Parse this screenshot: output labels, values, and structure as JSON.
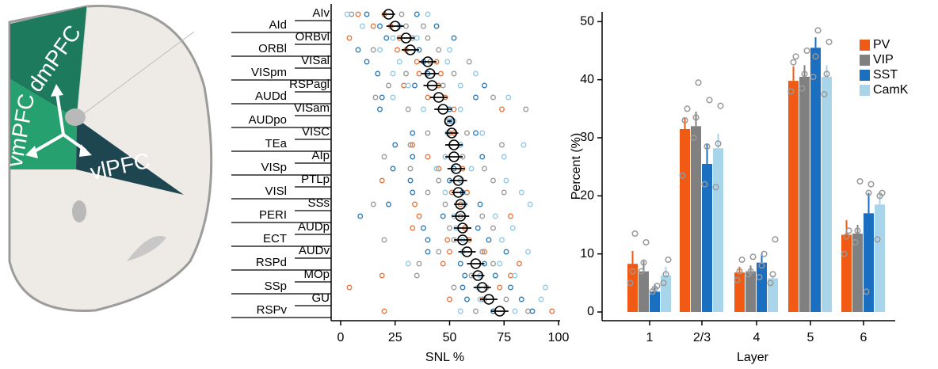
{
  "diagram": {
    "labels": [
      "dmPFC",
      "vmPFC",
      "vlPFC"
    ]
  },
  "chart_data": [
    {
      "type": "dot",
      "categories": [
        "AIv",
        "AId",
        "ORBvl",
        "ORBl",
        "VISal",
        "VISpm",
        "RSPagl",
        "AUDd",
        "VISam",
        "AUDpo",
        "VISC",
        "TEa",
        "AIp",
        "VISp",
        "PTLp",
        "VISl",
        "SSs",
        "PERI",
        "AUDp",
        "ECT",
        "AUDv",
        "RSPd",
        "MOp",
        "SSp",
        "GU",
        "RSPv"
      ],
      "category_colors": [
        "#c8323c",
        "#c8323c",
        "#c8323c",
        "#c8323c",
        "#3c3ca0",
        "#3c3ca0",
        "#3c3ca0",
        "#3c3ca0",
        "#3c3ca0",
        "#3c3ca0",
        "#3c3ca0",
        "#3c3ca0",
        "#3c3ca0",
        "#3c3ca0",
        "#3c3ca0",
        "#3c3ca0",
        "#3c3ca0",
        "#3c3ca0",
        "#3c3ca0",
        "#3c3ca0",
        "#3c3ca0",
        "#3c3ca0",
        "#3c3ca0",
        "#3c3ca0",
        "#3c3ca0",
        "#3c3ca0"
      ],
      "values": [
        22,
        25,
        30,
        32,
        40,
        41,
        42,
        45,
        47,
        50,
        51,
        52,
        52,
        53,
        54,
        54,
        55,
        55,
        56,
        56,
        58,
        62,
        63,
        65,
        68,
        73
      ],
      "errors": [
        3,
        4,
        4,
        4,
        4,
        4,
        4,
        4,
        4,
        1,
        3,
        4,
        4,
        4,
        4,
        3,
        3,
        4,
        4,
        4,
        4,
        4,
        3,
        4,
        4,
        4
      ],
      "series": [
        {
          "color": "#e8743b",
          "values": [
            [
              8,
              20
            ],
            [
              15,
              23
            ],
            [
              4,
              27
            ],
            [
              26,
              30
            ],
            [
              35,
              44
            ],
            [
              36,
              46
            ],
            [
              29,
              45
            ],
            [
              40,
              48
            ],
            [
              74,
              52
            ],
            [
              49,
              51
            ],
            [
              50,
              52
            ],
            [
              33,
              55
            ],
            [
              40,
              48
            ],
            [
              45,
              56
            ],
            [
              19,
              55
            ],
            [
              51,
              58
            ],
            [
              34,
              55
            ],
            [
              36,
              78
            ],
            [
              33,
              57
            ],
            [
              49,
              59
            ],
            [
              50,
              66
            ],
            [
              47,
              82
            ],
            [
              19,
              78
            ],
            [
              4,
              73
            ],
            [
              50,
              65
            ],
            [
              20,
              97
            ]
          ]
        },
        {
          "color": "#9a9a9a",
          "values": [
            [
              5,
              28
            ],
            [
              30,
              38
            ],
            [
              33,
              40
            ],
            [
              15,
              45
            ],
            [
              59,
              41
            ],
            [
              30,
              52
            ],
            [
              22,
              47
            ],
            [
              16,
              70
            ],
            [
              31,
              85
            ],
            [
              49,
              50
            ],
            [
              40,
              58
            ],
            [
              32,
              74
            ],
            [
              20,
              56
            ],
            [
              32,
              66
            ],
            [
              45,
              70
            ],
            [
              40,
              75
            ],
            [
              15,
              48
            ],
            [
              55,
              65
            ],
            [
              50,
              70
            ],
            [
              20,
              52
            ],
            [
              45,
              65
            ],
            [
              36,
              70
            ],
            [
              35,
              60
            ],
            [
              52,
              67
            ],
            [
              66,
              76
            ],
            [
              62,
              86
            ]
          ]
        },
        {
          "color": "#2b7bba",
          "values": [
            [
              12,
              35
            ],
            [
              18,
              44
            ],
            [
              21,
              52
            ],
            [
              8,
              36
            ],
            [
              12,
              38
            ],
            [
              17,
              40
            ],
            [
              34,
              66
            ],
            [
              19,
              62
            ],
            [
              18,
              50
            ],
            [
              50,
              51
            ],
            [
              33,
              62
            ],
            [
              25,
              55
            ],
            [
              33,
              65
            ],
            [
              24,
              52
            ],
            [
              32,
              50
            ],
            [
              33,
              56
            ],
            [
              22,
              64
            ],
            [
              9,
              47
            ],
            [
              38,
              63
            ],
            [
              40,
              68
            ],
            [
              40,
              76
            ],
            [
              55,
              66
            ],
            [
              57,
              71
            ],
            [
              56,
              78
            ],
            [
              58,
              83
            ],
            [
              70,
              88
            ]
          ]
        },
        {
          "color": "#8ec9e8",
          "values": [
            [
              3,
              40
            ],
            [
              10,
              27
            ],
            [
              24,
              35
            ],
            [
              18,
              50
            ],
            [
              27,
              49
            ],
            [
              24,
              62
            ],
            [
              31,
              55
            ],
            [
              24,
              77
            ],
            [
              38,
              55
            ],
            [
              50,
              52
            ],
            [
              49,
              65
            ],
            [
              55,
              84
            ],
            [
              48,
              75
            ],
            [
              44,
              60
            ],
            [
              55,
              76
            ],
            [
              48,
              83
            ],
            [
              57,
              87
            ],
            [
              52,
              71
            ],
            [
              53,
              79
            ],
            [
              56,
              74
            ],
            [
              56,
              86
            ],
            [
              31,
              73
            ],
            [
              64,
              80
            ],
            [
              63,
              94
            ],
            [
              64,
              92
            ],
            [
              55,
              80
            ]
          ]
        }
      ],
      "xlim": [
        -3,
        100
      ],
      "xticks": [
        0,
        25,
        50,
        75,
        100
      ],
      "xlabel": "SNL %"
    },
    {
      "type": "bar",
      "categories": [
        "1",
        "2/3",
        "4",
        "5",
        "6"
      ],
      "series": [
        {
          "name": "PV",
          "color": "#f05a14",
          "values": [
            8.3,
            31.5,
            6.8,
            39.8,
            13.3
          ],
          "errors": [
            2.2,
            2,
            1,
            2.5,
            2.5
          ],
          "points": [
            [
              5,
              7,
              13.5
            ],
            [
              23.5,
              33,
              35
            ],
            [
              5.5,
              7,
              9
            ],
            [
              38,
              43,
              44
            ],
            [
              10,
              13,
              14
            ]
          ]
        },
        {
          "name": "VIP",
          "color": "#808080",
          "values": [
            7,
            32,
            7,
            40.5,
            13.5
          ],
          "errors": [
            1.8,
            2.5,
            1,
            2,
            1.5
          ],
          "points": [
            [
              7,
              8.5,
              12
            ],
            [
              30,
              33.5,
              39.5
            ],
            [
              6.5,
              7,
              9.5
            ],
            [
              38.5,
              41,
              45
            ],
            [
              12,
              14,
              22.5
            ]
          ]
        },
        {
          "name": "SST",
          "color": "#1a6fc0",
          "values": [
            3.5,
            25.5,
            8.5,
            45.5,
            17
          ],
          "errors": [
            1.3,
            3.5,
            1.7,
            1.8,
            3.5
          ],
          "points": [
            [
              3.5,
              4,
              4.5
            ],
            [
              22,
              28.5,
              36.5
            ],
            [
              6,
              8,
              10
            ],
            [
              40.5,
              44,
              48.5
            ],
            [
              3.5,
              20.5,
              22
            ]
          ]
        },
        {
          "name": "CamK",
          "color": "#a8d5ea",
          "values": [
            6.3,
            28.2,
            5.8,
            40.5,
            18.5
          ],
          "errors": [
            1.5,
            2.5,
            0.5,
            2,
            2
          ],
          "points": [
            [
              5,
              6.5,
              9
            ],
            [
              21.5,
              29,
              35.5
            ],
            [
              5,
              6.5,
              12.5
            ],
            [
              37.5,
              41,
              46.5
            ],
            [
              12.5,
              20,
              20.5
            ]
          ]
        }
      ],
      "ylim": [
        -1.5,
        51
      ],
      "yticks": [
        0,
        10,
        20,
        30,
        40,
        50
      ],
      "xlabel": "Layer",
      "ylabel": "Percent (%)",
      "legend": "top-right"
    }
  ]
}
